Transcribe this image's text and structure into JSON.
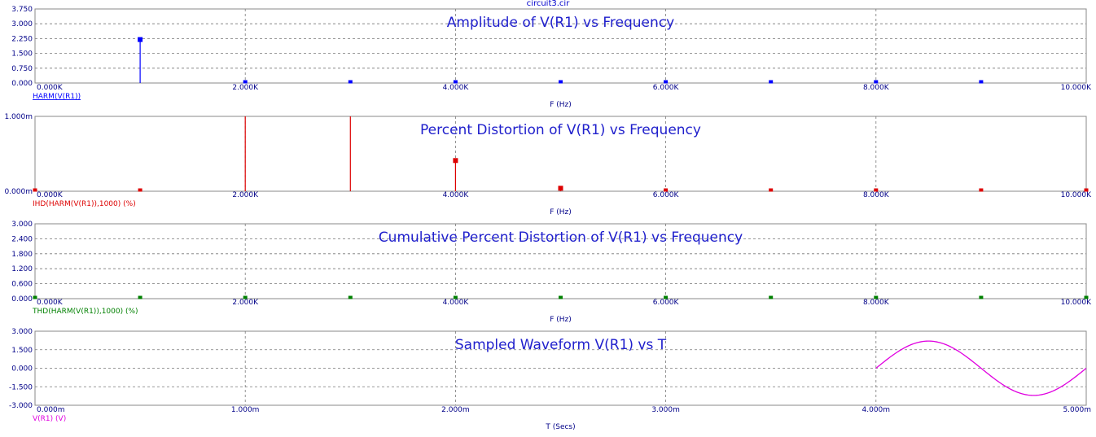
{
  "window_title": "circuit3.cir",
  "chart_data": [
    {
      "type": "bar",
      "title": "Amplitude of V(R1) vs Frequency",
      "xlabel": "F (Hz)",
      "trace_label": "HARM(V(R1))",
      "color": "#0000ff",
      "xlim": [
        0,
        10000
      ],
      "ylim": [
        0,
        3.75
      ],
      "y_ticks": [
        "0.000",
        "0.750",
        "1.500",
        "2.250",
        "3.000",
        "3.750"
      ],
      "x_ticks": [
        "0.000K",
        "2.000K",
        "4.000K",
        "6.000K",
        "8.000K",
        "10.000K"
      ],
      "x": [
        1000,
        2000,
        3000,
        4000,
        5000,
        6000,
        7000,
        8000,
        9000
      ],
      "values": [
        2.2,
        0.0,
        0.0,
        0.0,
        0.0,
        0.0,
        0.0,
        0.0,
        0.0
      ]
    },
    {
      "type": "bar",
      "title": "Percent Distortion of V(R1) vs Frequency",
      "xlabel": "F (Hz)",
      "trace_label": "IHD(HARM(V(R1)),1000) (%)",
      "color": "#dd0000",
      "xlim": [
        0,
        10000
      ],
      "ylim": [
        0,
        1.0
      ],
      "y_ticks": [
        "0.000m",
        "1.000m"
      ],
      "x_ticks": [
        "0.000K",
        "2.000K",
        "4.000K",
        "6.000K",
        "8.000K",
        "10.000K"
      ],
      "x": [
        0,
        1000,
        2000,
        3000,
        4000,
        5000,
        6000,
        7000,
        8000,
        9000,
        10000
      ],
      "values": [
        0.0,
        0.0,
        1.0,
        1.0,
        0.41,
        0.04,
        0.0,
        0.0,
        0.0,
        0.0,
        0.0
      ],
      "clipped": [
        false,
        false,
        true,
        true,
        false,
        false,
        false,
        false,
        false,
        false,
        false
      ]
    },
    {
      "type": "scatter",
      "title": "Cumulative Percent Distortion of V(R1) vs Frequency",
      "xlabel": "F (Hz)",
      "trace_label": "THD(HARM(V(R1)),1000) (%)",
      "color": "#008000",
      "xlim": [
        0,
        10000
      ],
      "ylim": [
        0,
        3.0
      ],
      "y_ticks": [
        "0.000",
        "0.600",
        "1.200",
        "1.800",
        "2.400",
        "3.000"
      ],
      "x_ticks": [
        "0.000K",
        "2.000K",
        "4.000K",
        "6.000K",
        "8.000K",
        "10.000K"
      ],
      "x": [
        0,
        1000,
        2000,
        3000,
        4000,
        5000,
        6000,
        7000,
        8000,
        9000,
        10000
      ],
      "values": [
        0,
        0,
        0,
        0,
        0,
        0,
        0,
        0,
        0,
        0,
        0
      ]
    },
    {
      "type": "line",
      "title": "Sampled Waveform  V(R1) vs T",
      "xlabel": "T (Secs)",
      "trace_label": "V(R1) (V)",
      "color": "#e000e0",
      "xlim": [
        0,
        5
      ],
      "ylim": [
        -3.0,
        3.0
      ],
      "y_ticks": [
        "-3.000",
        "-1.500",
        "0.000",
        "1.500",
        "3.000"
      ],
      "x_ticks": [
        "0.000m",
        "1.000m",
        "2.000m",
        "3.000m",
        "4.000m",
        "5.000m"
      ],
      "amplitude": 2.2,
      "t_start": 4.0,
      "t_end": 5.0,
      "frequency_hz": 1000
    }
  ]
}
